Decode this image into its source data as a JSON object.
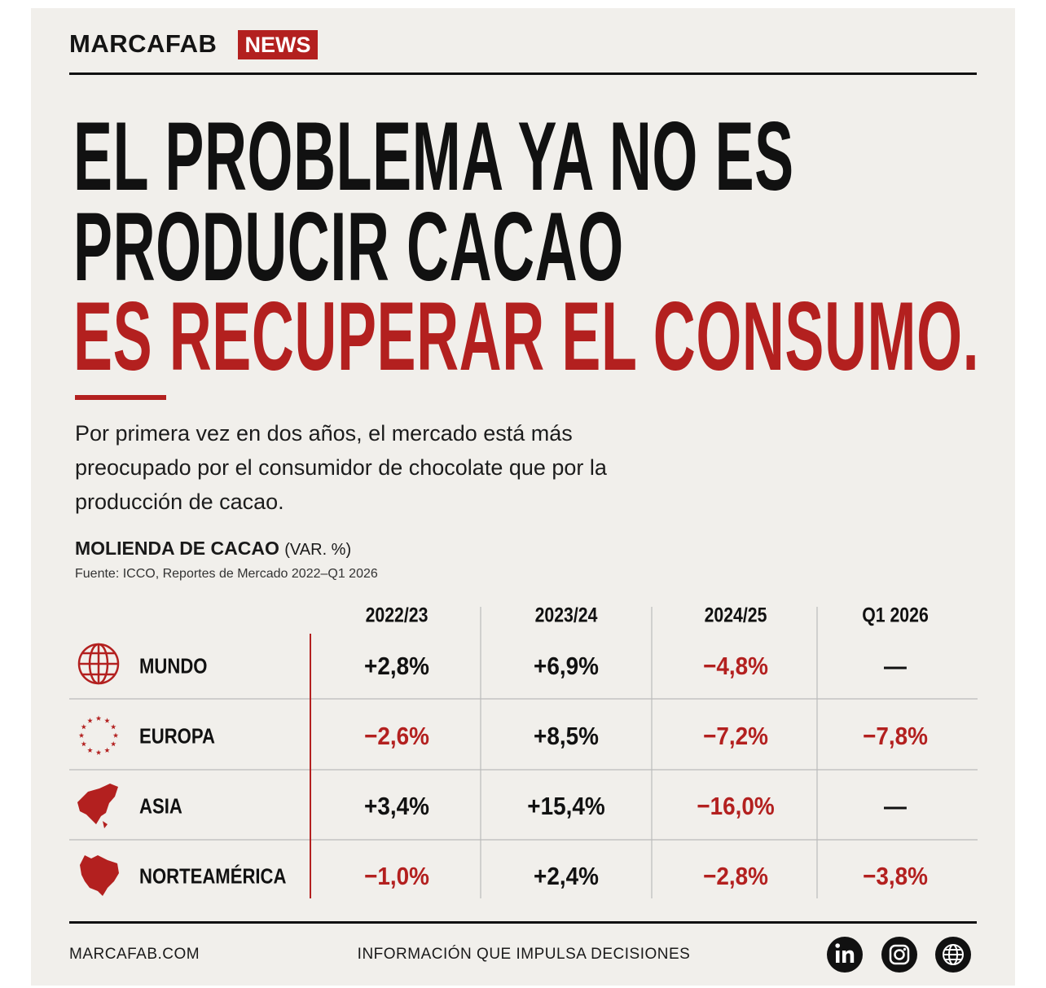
{
  "header": {
    "brand": "MARCAFAB",
    "tag": "NEWS"
  },
  "headline": {
    "lines": [
      "EL PROBLEMA YA NO ES",
      "PRODUCIR CACAO"
    ],
    "highlight": "ES RECUPERAR EL CONSUMO."
  },
  "intro": "Por primera vez en dos años, el mercado está más preocupado por el consumidor de chocolate que por la producción de cacao.",
  "table": {
    "title": "MOLIENDA DE CACAO",
    "unit": "(VAR. %)",
    "source": "Fuente: ICCO, Reportes de Mercado 2022–Q1 2026",
    "columns": [
      "2022/23",
      "2023/24",
      "2024/25",
      "Q1 2026"
    ],
    "rows": [
      {
        "region": "MUNDO",
        "values": [
          "+2,8%",
          "+6,9%",
          "−4,8%",
          "—"
        ]
      },
      {
        "region": "EUROPA",
        "values": [
          "−2,6%",
          "+8,5%",
          "−7,2%",
          "−7,8%"
        ]
      },
      {
        "region": "ASIA",
        "values": [
          "+3,4%",
          "+15,4%",
          "−16,0%",
          "—"
        ]
      },
      {
        "region": "NORTEAMÉRICA",
        "values": [
          "−1,0%",
          "+2,4%",
          "−2,8%",
          "−3,8%"
        ]
      }
    ]
  },
  "footer": {
    "site": "MARCAFAB.COM",
    "tagline": "INFORMACIÓN QUE IMPULSA DECISIONES"
  }
}
